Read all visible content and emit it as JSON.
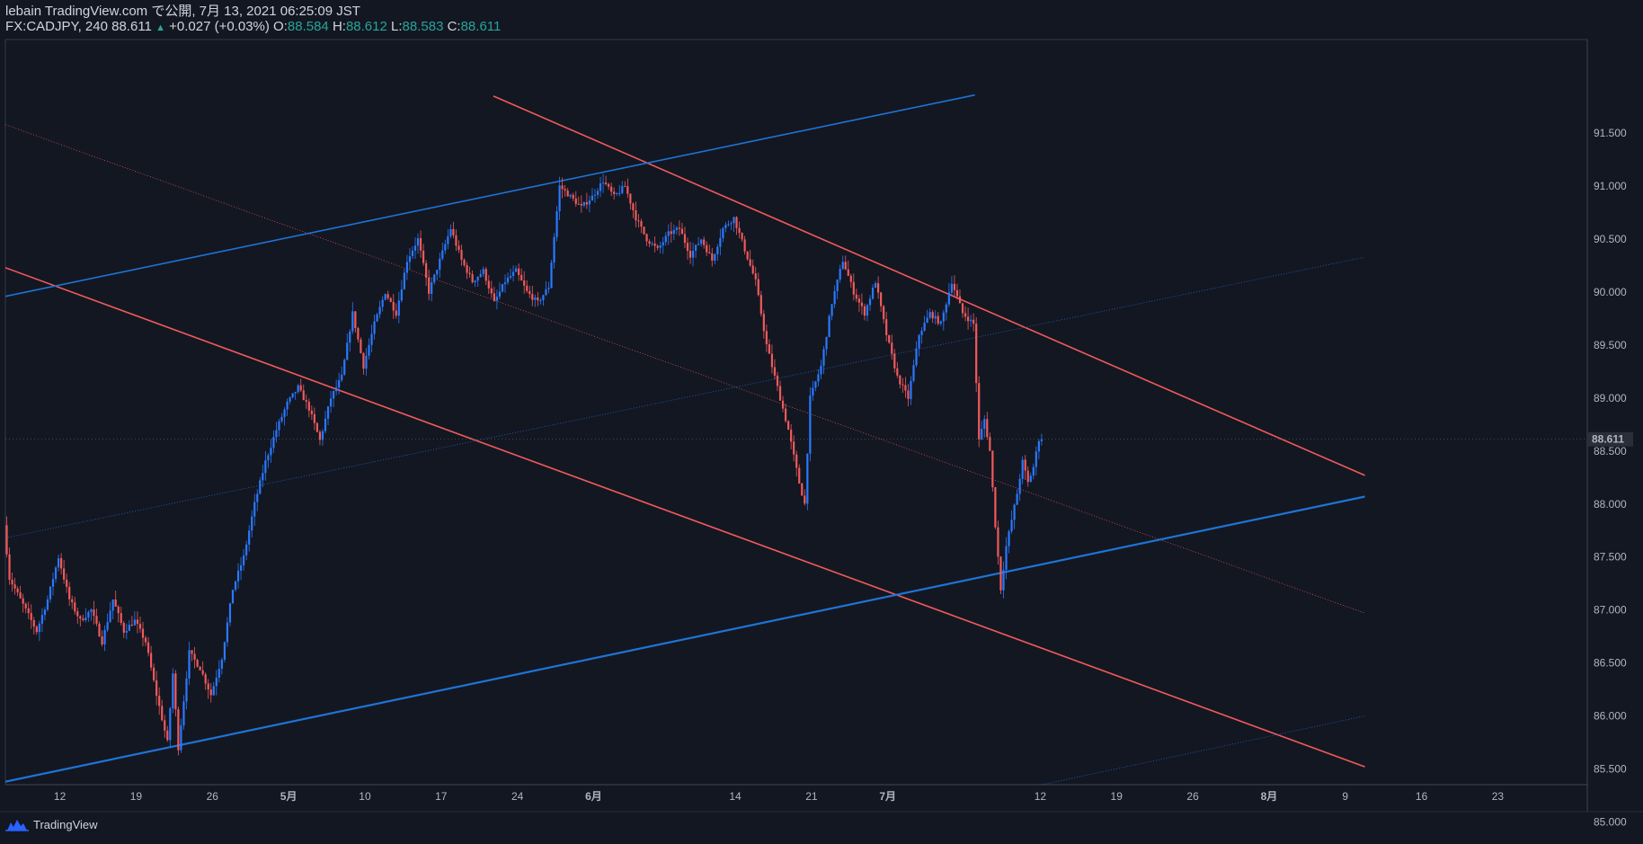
{
  "header": {
    "published": "lebain TradingView.com で公開, 7月 13, 2021 06:25:09 JST",
    "symbol": "FX:CADJPY, 240",
    "last": "88.611",
    "change": "+0.027 (+0.03%)",
    "o_label": "O:",
    "o": "88.584",
    "h_label": "H:",
    "h": "88.612",
    "l_label": "L:",
    "l": "88.583",
    "c_label": "C:",
    "c": "88.611"
  },
  "footer": {
    "brand": "TradingView"
  },
  "colors": {
    "background": "#131722",
    "up": "#2979ff",
    "down": "#f05a5a",
    "red_line": "#f05a5a",
    "blue_line": "#1e74d6",
    "label": "#b2b5be"
  },
  "chart_data": {
    "type": "candlestick",
    "symbol": "FX:CADJPY",
    "interval": "240",
    "ylim": [
      84.85,
      91.85
    ],
    "y_ticks": [
      "91.500",
      "91.000",
      "90.500",
      "90.000",
      "89.500",
      "89.000",
      "88.500",
      "88.000",
      "87.500",
      "87.000",
      "86.500",
      "86.000",
      "85.500",
      "85.000"
    ],
    "last_price": "88.611",
    "x_ticks": [
      {
        "label": "12",
        "d": 5
      },
      {
        "label": "19",
        "d": 12
      },
      {
        "label": "26",
        "d": 19
      },
      {
        "label": "5月",
        "d": 26,
        "bold": true
      },
      {
        "label": "10",
        "d": 33
      },
      {
        "label": "17",
        "d": 40
      },
      {
        "label": "24",
        "d": 47
      },
      {
        "label": "6月",
        "d": 54,
        "bold": true
      },
      {
        "label": "14",
        "d": 67
      },
      {
        "label": "21",
        "d": 74
      },
      {
        "label": "7月",
        "d": 81,
        "bold": true
      },
      {
        "label": "12",
        "d": 95
      },
      {
        "label": "19",
        "d": 102
      },
      {
        "label": "26",
        "d": 109
      },
      {
        "label": "8月",
        "d": 116,
        "bold": true
      },
      {
        "label": "9",
        "d": 123
      },
      {
        "label": "16",
        "d": 130
      },
      {
        "label": "23",
        "d": 137
      }
    ],
    "price_path": [
      [
        0,
        87.8
      ],
      [
        0.5,
        87.3
      ],
      [
        2,
        87.0
      ],
      [
        3,
        86.8
      ],
      [
        4,
        87.1
      ],
      [
        5,
        87.5
      ],
      [
        6,
        87.1
      ],
      [
        7,
        86.9
      ],
      [
        8,
        87.0
      ],
      [
        9,
        86.7
      ],
      [
        10,
        87.1
      ],
      [
        11,
        86.8
      ],
      [
        12,
        86.9
      ],
      [
        13,
        86.7
      ],
      [
        14,
        86.2
      ],
      [
        15,
        85.75
      ],
      [
        15.5,
        86.4
      ],
      [
        16,
        85.7
      ],
      [
        17,
        86.6
      ],
      [
        18,
        86.45
      ],
      [
        19,
        86.2
      ],
      [
        20,
        86.55
      ],
      [
        21,
        87.2
      ],
      [
        22,
        87.5
      ],
      [
        23,
        88.0
      ],
      [
        24,
        88.4
      ],
      [
        25,
        88.7
      ],
      [
        26,
        88.95
      ],
      [
        27,
        89.1
      ],
      [
        28,
        88.9
      ],
      [
        29,
        88.6
      ],
      [
        30,
        89.0
      ],
      [
        31,
        89.2
      ],
      [
        32,
        89.8
      ],
      [
        33,
        89.3
      ],
      [
        34,
        89.7
      ],
      [
        35,
        90.0
      ],
      [
        36,
        89.8
      ],
      [
        37,
        90.3
      ],
      [
        38,
        90.5
      ],
      [
        39,
        90.0
      ],
      [
        40,
        90.3
      ],
      [
        41,
        90.6
      ],
      [
        42,
        90.3
      ],
      [
        43,
        90.1
      ],
      [
        44,
        90.2
      ],
      [
        45,
        89.9
      ],
      [
        46,
        90.1
      ],
      [
        47,
        90.2
      ],
      [
        48,
        90.0
      ],
      [
        49,
        89.9
      ],
      [
        50,
        90.05
      ],
      [
        51,
        91.0
      ],
      [
        52,
        90.9
      ],
      [
        53,
        90.8
      ],
      [
        54,
        90.9
      ],
      [
        55,
        91.05
      ],
      [
        56,
        90.9
      ],
      [
        57,
        91.0
      ],
      [
        58,
        90.7
      ],
      [
        59,
        90.5
      ],
      [
        60,
        90.4
      ],
      [
        61,
        90.55
      ],
      [
        62,
        90.6
      ],
      [
        63,
        90.35
      ],
      [
        64,
        90.5
      ],
      [
        65,
        90.3
      ],
      [
        66,
        90.6
      ],
      [
        67,
        90.7
      ],
      [
        68,
        90.4
      ],
      [
        69,
        90.1
      ],
      [
        70,
        89.5
      ],
      [
        71,
        89.1
      ],
      [
        72,
        88.7
      ],
      [
        73,
        88.2
      ],
      [
        73.5,
        88.0
      ],
      [
        74,
        89.0
      ],
      [
        75,
        89.3
      ],
      [
        76,
        89.9
      ],
      [
        77,
        90.3
      ],
      [
        78,
        90.0
      ],
      [
        79,
        89.8
      ],
      [
        80,
        90.1
      ],
      [
        81,
        89.6
      ],
      [
        82,
        89.2
      ],
      [
        83,
        89.0
      ],
      [
        84,
        89.6
      ],
      [
        85,
        89.8
      ],
      [
        86,
        89.7
      ],
      [
        87,
        90.1
      ],
      [
        88,
        89.8
      ],
      [
        89,
        89.7
      ],
      [
        89.5,
        88.6
      ],
      [
        90,
        88.8
      ],
      [
        90.5,
        88.5
      ],
      [
        91,
        87.8
      ],
      [
        91.5,
        87.2
      ],
      [
        92,
        87.6
      ],
      [
        93,
        88.1
      ],
      [
        93.5,
        88.4
      ],
      [
        94,
        88.2
      ],
      [
        94.5,
        88.35
      ],
      [
        95,
        88.611
      ]
    ],
    "lines": [
      {
        "color": "red",
        "width": 1.6,
        "p1": [
          44.8,
          91.85
        ],
        "p2": [
          124.8,
          88.27
        ]
      },
      {
        "color": "red",
        "width": 1.6,
        "p1": [
          0,
          90.23
        ],
        "p2": [
          124.8,
          85.52
        ]
      },
      {
        "color": "red",
        "width": 0.7,
        "dash": "1,2",
        "p1": [
          0,
          91.58
        ],
        "p2": [
          124.8,
          86.97
        ]
      },
      {
        "color": "blue",
        "width": 1.6,
        "p1": [
          0,
          89.96
        ],
        "p2": [
          89,
          91.86
        ]
      },
      {
        "color": "blue",
        "width": 2.2,
        "p1": [
          0,
          85.38
        ],
        "p2": [
          124.8,
          88.07
        ]
      },
      {
        "color": "blue",
        "width": 0.7,
        "dash": "1,2",
        "p1": [
          0,
          87.68
        ],
        "p2": [
          124.8,
          90.33
        ]
      },
      {
        "color": "blue",
        "width": 0.7,
        "dash": "1,2",
        "p1": [
          72.2,
          84.85
        ],
        "p2": [
          124.8,
          86.0
        ]
      }
    ]
  }
}
